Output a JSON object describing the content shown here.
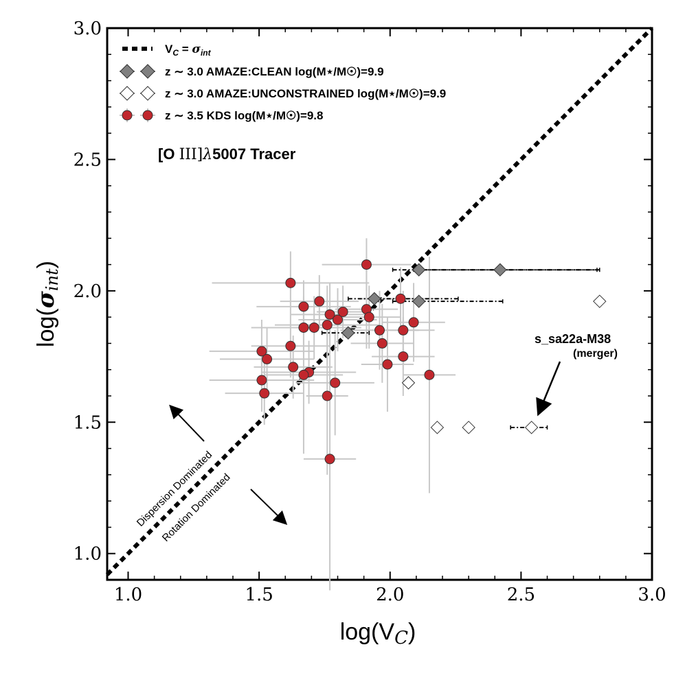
{
  "chart_data": {
    "type": "scatter",
    "title": "",
    "xlabel": "log(V",
    "xlabel_sub": "C",
    "xlabel_close": ")",
    "ylabel": "log(",
    "ylabel_sym": "σ",
    "ylabel_sub": "int",
    "ylabel_close": ")",
    "xlim": [
      0.92,
      3.0
    ],
    "ylim": [
      0.9,
      3.0
    ],
    "xticks": [
      1.0,
      1.5,
      2.0,
      2.5,
      3.0
    ],
    "yticks": [
      1.0,
      1.5,
      2.0,
      2.5,
      3.0
    ],
    "xtick_labels": [
      "1.0",
      "1.5",
      "2.0",
      "2.5",
      "3.0"
    ],
    "ytick_labels": [
      "1.0",
      "1.5",
      "2.0",
      "2.5",
      "3.0"
    ],
    "grid": false,
    "reference_line": {
      "label_a": "V",
      "label_sub_a": "C",
      "label_eq": " = ",
      "label_b": "σ",
      "label_sub_b": "int",
      "slope": 1,
      "intercept": 0
    },
    "tracer_label": {
      "prefix": "[O ",
      "roman": "III]",
      "lambda": "λ",
      "suffix": "5007 Tracer"
    },
    "legend": {
      "placement": "top-left",
      "entries": [
        {
          "name": "z ∼ 3.0 AMAZE:CLEAN log(M⋆/M☉)=9.9",
          "color": "#808080",
          "marker": "diamond"
        },
        {
          "name": "z ∼ 3.0 AMAZE:UNCONSTRAINED log(M⋆/M☉)=9.9",
          "color": "#ffffff",
          "marker": "diamond"
        },
        {
          "name": "z ∼ 3.5 KDS log(M⋆/M☉)=9.8",
          "color": "#c1272d",
          "marker": "circle"
        }
      ]
    },
    "series": [
      {
        "name": "z ∼ 3.5 KDS log(M⋆/M☉)=9.8",
        "color": "#c1272d",
        "errorbar_color": "#c8c8c8",
        "marker": "circle",
        "points": [
          {
            "x": 1.91,
            "y": 2.1,
            "xerr": 0.17,
            "yerr": 0.1
          },
          {
            "x": 1.62,
            "y": 2.03,
            "xerr": 0.3,
            "yerr": 0.12
          },
          {
            "x": 1.67,
            "y": 1.94,
            "xerr": 0.18,
            "yerr": 0.1
          },
          {
            "x": 1.73,
            "y": 1.96,
            "xerr": 0.15,
            "yerr": 0.1
          },
          {
            "x": 1.77,
            "y": 1.91,
            "xerr": 0.15,
            "yerr": 0.12
          },
          {
            "x": 1.8,
            "y": 1.89,
            "xerr": 0.15,
            "yerr": 0.12
          },
          {
            "x": 1.82,
            "y": 1.92,
            "xerr": 0.1,
            "yerr": 0.1
          },
          {
            "x": 1.76,
            "y": 1.87,
            "xerr": 0.2,
            "yerr": 0.15
          },
          {
            "x": 1.67,
            "y": 1.86,
            "xerr": 0.2,
            "yerr": 0.1
          },
          {
            "x": 1.71,
            "y": 1.86,
            "xerr": 0.18,
            "yerr": 0.12
          },
          {
            "x": 1.91,
            "y": 1.93,
            "xerr": 0.12,
            "yerr": 0.15
          },
          {
            "x": 1.92,
            "y": 1.9,
            "xerr": 0.12,
            "yerr": 0.12
          },
          {
            "x": 2.04,
            "y": 1.97,
            "xerr": 0.15,
            "yerr": 0.12
          },
          {
            "x": 1.96,
            "y": 1.85,
            "xerr": 0.15,
            "yerr": 0.15
          },
          {
            "x": 1.97,
            "y": 1.8,
            "xerr": 0.12,
            "yerr": 0.15
          },
          {
            "x": 2.05,
            "y": 1.85,
            "xerr": 0.12,
            "yerr": 0.15
          },
          {
            "x": 2.09,
            "y": 1.88,
            "xerr": 0.12,
            "yerr": 0.15
          },
          {
            "x": 2.05,
            "y": 1.75,
            "xerr": 0.12,
            "yerr": 0.15
          },
          {
            "x": 1.99,
            "y": 1.72,
            "xerr": 0.1,
            "yerr": 0.18
          },
          {
            "x": 1.51,
            "y": 1.77,
            "xerr": 0.2,
            "yerr": 0.12
          },
          {
            "x": 1.62,
            "y": 1.79,
            "xerr": 0.15,
            "yerr": 0.12
          },
          {
            "x": 1.53,
            "y": 1.74,
            "xerr": 0.18,
            "yerr": 0.12
          },
          {
            "x": 1.63,
            "y": 1.71,
            "xerr": 0.15,
            "yerr": 0.12
          },
          {
            "x": 1.69,
            "y": 1.69,
            "xerr": 0.18,
            "yerr": 0.12
          },
          {
            "x": 1.67,
            "y": 1.68,
            "xerr": 0.15,
            "yerr": 0.3
          },
          {
            "x": 1.51,
            "y": 1.66,
            "xerr": 0.2,
            "yerr": 0.12
          },
          {
            "x": 1.79,
            "y": 1.65,
            "xerr": 0.15,
            "yerr": 0.2
          },
          {
            "x": 1.52,
            "y": 1.61,
            "xerr": 0.15,
            "yerr": 0.12
          },
          {
            "x": 1.76,
            "y": 1.6,
            "xerr": 0.08,
            "yerr": 0.3
          },
          {
            "x": 2.15,
            "y": 1.68,
            "xerr": 0.1,
            "yerr": 0.45
          },
          {
            "x": 1.77,
            "y": 1.36,
            "xerr": 0.1,
            "yerr": 0.5
          }
        ]
      },
      {
        "name": "z ∼ 3.0 AMAZE:CLEAN log(M⋆/M☉)=9.9",
        "color": "#808080",
        "marker": "diamond",
        "points": [
          {
            "x": 2.11,
            "y": 2.08,
            "xerr_lo": 0.1,
            "xerr_hi": 0.68
          },
          {
            "x": 2.42,
            "y": 2.08,
            "xerr_lo": 0.33,
            "xerr_hi": 0.38
          },
          {
            "x": 1.94,
            "y": 1.97,
            "xerr_lo": 0.1,
            "xerr_hi": 0.32
          },
          {
            "x": 2.11,
            "y": 1.96,
            "xerr_lo": 0.1,
            "xerr_hi": 0.32
          },
          {
            "x": 1.84,
            "y": 1.84,
            "xerr_lo": 0.1,
            "xerr_hi": 0.08
          }
        ]
      },
      {
        "name": "z ∼ 3.0 AMAZE:UNCONSTRAINED log(M⋆/M☉)=9.9",
        "color": "#ffffff",
        "marker": "diamond",
        "points": [
          {
            "x": 2.8,
            "y": 1.96
          },
          {
            "x": 2.07,
            "y": 1.65
          },
          {
            "x": 2.18,
            "y": 1.48
          },
          {
            "x": 2.3,
            "y": 1.48
          },
          {
            "x": 2.54,
            "y": 1.48,
            "xerr_lo": 0.08,
            "xerr_hi": 0.06
          }
        ]
      }
    ],
    "annotations": [
      {
        "text": "s_sa22a-M38",
        "target_x": 2.54,
        "target_y": 1.48
      },
      {
        "text": "(merger)",
        "target_x": 2.54,
        "target_y": 1.48
      },
      {
        "text": "Dispersion Dominated",
        "direction": "up-left"
      },
      {
        "text": "Rotation Dominated",
        "direction": "down-right"
      }
    ]
  }
}
